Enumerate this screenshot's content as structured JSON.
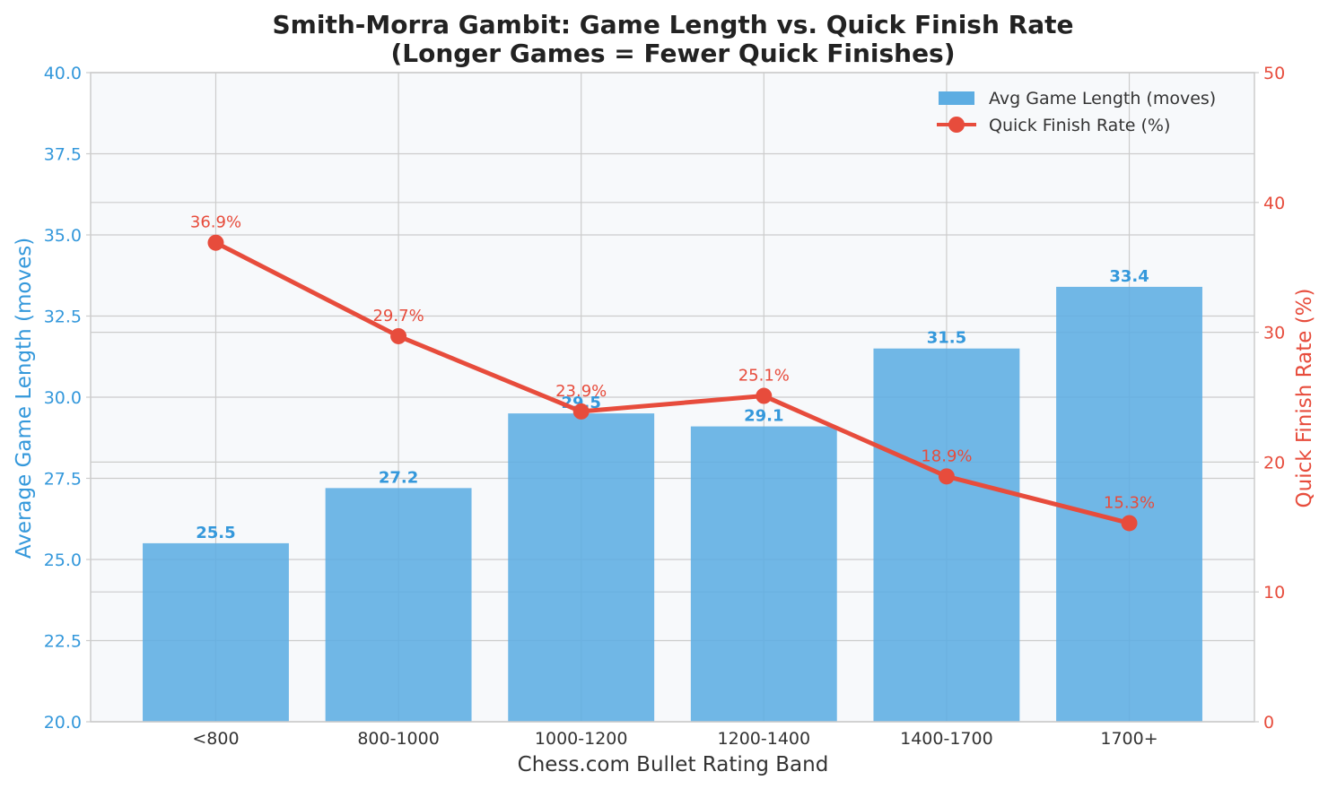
{
  "chart_data": {
    "type": "bar",
    "title": "Smith-Morra Gambit: Game Length vs. Quick Finish Rate",
    "subtitle": "(Longer Games = Fewer Quick Finishes)",
    "xlabel": "Chess.com Bullet Rating Band",
    "ylabel": "Average Game Length (moves)",
    "ylabel_right": "Quick Finish Rate (%)",
    "categories": [
      "<800",
      "800-1000",
      "1000-1200",
      "1200-1400",
      "1400-1700",
      "1700+"
    ],
    "ylim": [
      20,
      40
    ],
    "ylim_right": [
      0,
      50
    ],
    "yticks": [
      "20.0",
      "22.5",
      "25.0",
      "27.5",
      "30.0",
      "32.5",
      "35.0",
      "37.5",
      "40.0"
    ],
    "yticks_right": [
      "0",
      "10",
      "20",
      "30",
      "40",
      "50"
    ],
    "grid": true,
    "legend_position": "top-right",
    "series": [
      {
        "name": "Avg Game Length (moves)",
        "type": "bar",
        "axis": "left",
        "values": [
          25.5,
          27.2,
          29.5,
          29.1,
          31.5,
          33.4
        ],
        "labels": [
          "25.5",
          "27.2",
          "29.5",
          "29.1",
          "31.5",
          "33.4"
        ],
        "color": "#5DADE2"
      },
      {
        "name": "Quick Finish Rate (%)",
        "type": "line",
        "axis": "right",
        "values": [
          36.9,
          29.7,
          23.9,
          25.1,
          18.9,
          15.3
        ],
        "labels": [
          "36.9%",
          "29.7%",
          "23.9%",
          "25.1%",
          "18.9%",
          "15.3%"
        ],
        "color": "#E74C3C"
      }
    ],
    "colors": {
      "left_axis": "#3498DB",
      "right_axis": "#E74C3C",
      "plot_bg": "#F7F9FB",
      "grid": "#CCCCCC"
    }
  }
}
